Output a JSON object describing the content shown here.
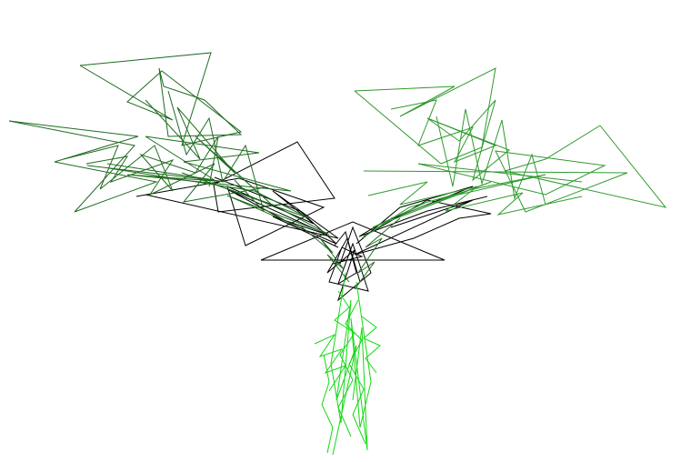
{
  "scene": {
    "background": "#ffffff",
    "colors": {
      "dark_core": "#000000",
      "dark_green": "#1f6b1f",
      "mid_green": "#2f9a2f",
      "bright_green": "#14d814"
    }
  }
}
